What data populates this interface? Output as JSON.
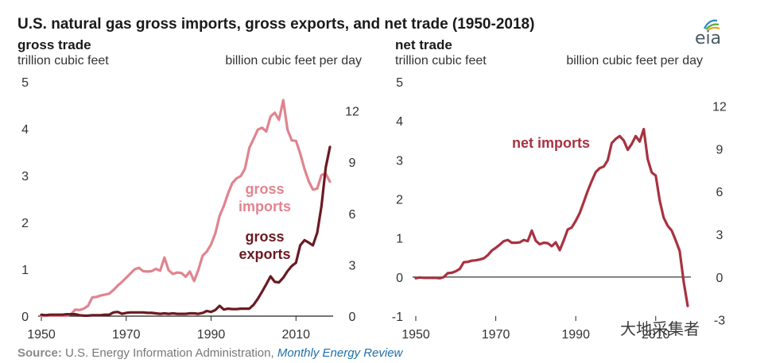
{
  "title": "U.S. natural gas gross imports, gross exports, and net trade (1950-2018)",
  "source": {
    "label": "Source:",
    "agency": "U.S. Energy Information Administration,",
    "publication": "Monthly Energy Review"
  },
  "logo": {
    "text": "eia",
    "icon": "eia-logo-icon"
  },
  "watermark": "大地采集者",
  "colors": {
    "imports": "#e0848f",
    "exports": "#6b1a22",
    "net_imports": "#a83240",
    "axis": "#222222"
  },
  "chart_data": [
    {
      "type": "line",
      "panel": "gross trade",
      "title": "gross trade",
      "ylabel_left": "trillion cubic feet",
      "ylabel_right": "billion cubic feet per day",
      "xlim": [
        1950,
        2018
      ],
      "ylim": [
        0,
        5
      ],
      "y2lim": [
        0,
        13.7
      ],
      "xticks": [
        "1950",
        "1970",
        "1990",
        "2010"
      ],
      "yticks": [
        "0",
        "1",
        "2",
        "3",
        "4",
        "5"
      ],
      "y2ticks": [
        "0",
        "3",
        "6",
        "9",
        "12"
      ],
      "grid": false,
      "x": [
        1950,
        1951,
        1952,
        1953,
        1954,
        1955,
        1956,
        1957,
        1958,
        1959,
        1960,
        1961,
        1962,
        1963,
        1964,
        1965,
        1966,
        1967,
        1968,
        1969,
        1970,
        1971,
        1972,
        1973,
        1974,
        1975,
        1976,
        1977,
        1978,
        1979,
        1980,
        1981,
        1982,
        1983,
        1984,
        1985,
        1986,
        1987,
        1988,
        1989,
        1990,
        1991,
        1992,
        1993,
        1994,
        1995,
        1996,
        1997,
        1998,
        1999,
        2000,
        2001,
        2002,
        2003,
        2004,
        2005,
        2006,
        2007,
        2008,
        2009,
        2010,
        2011,
        2012,
        2013,
        2014,
        2015,
        2016,
        2017,
        2018
      ],
      "series": [
        {
          "name": "gross imports",
          "label": [
            "gross",
            "imports"
          ],
          "values": [
            0.0,
            0.01,
            0.01,
            0.01,
            0.01,
            0.01,
            0.01,
            0.04,
            0.14,
            0.13,
            0.16,
            0.22,
            0.4,
            0.41,
            0.44,
            0.46,
            0.48,
            0.56,
            0.65,
            0.73,
            0.82,
            0.91,
            1.0,
            1.03,
            0.96,
            0.95,
            0.96,
            1.01,
            0.97,
            1.25,
            0.98,
            0.9,
            0.93,
            0.92,
            0.84,
            0.95,
            0.75,
            0.99,
            1.29,
            1.38,
            1.53,
            1.77,
            2.14,
            2.35,
            2.62,
            2.84,
            2.94,
            2.99,
            3.15,
            3.59,
            3.78,
            3.98,
            4.02,
            3.94,
            4.26,
            4.34,
            4.19,
            4.61,
            3.98,
            3.75,
            3.74,
            3.47,
            3.14,
            2.88,
            2.7,
            2.72,
            3.01,
            3.04,
            2.87
          ]
        },
        {
          "name": "gross exports",
          "label": [
            "gross",
            "exports"
          ],
          "values": [
            0.03,
            0.02,
            0.03,
            0.03,
            0.03,
            0.03,
            0.04,
            0.04,
            0.04,
            0.02,
            0.01,
            0.01,
            0.02,
            0.02,
            0.02,
            0.03,
            0.03,
            0.08,
            0.09,
            0.05,
            0.07,
            0.08,
            0.08,
            0.08,
            0.08,
            0.07,
            0.07,
            0.06,
            0.05,
            0.06,
            0.05,
            0.06,
            0.05,
            0.05,
            0.05,
            0.06,
            0.06,
            0.05,
            0.07,
            0.11,
            0.09,
            0.13,
            0.22,
            0.14,
            0.16,
            0.15,
            0.15,
            0.16,
            0.16,
            0.16,
            0.24,
            0.37,
            0.52,
            0.68,
            0.85,
            0.73,
            0.72,
            0.82,
            0.96,
            1.07,
            1.14,
            1.51,
            1.62,
            1.57,
            1.51,
            1.78,
            2.34,
            3.17,
            3.61
          ]
        }
      ]
    },
    {
      "type": "line",
      "panel": "net trade",
      "title": "net trade",
      "ylabel_left": "trillion cubic feet",
      "ylabel_right": "billion cubic feet per day",
      "xlim": [
        1950,
        2018
      ],
      "ylim": [
        -1,
        5
      ],
      "y2lim": [
        -2.74,
        13.7
      ],
      "xticks": [
        "1950",
        "1970",
        "1990",
        "2010"
      ],
      "yticks": [
        "-1",
        "0",
        "1",
        "2",
        "3",
        "4",
        "5"
      ],
      "y2ticks": [
        "-3",
        "0",
        "3",
        "6",
        "9",
        "12"
      ],
      "grid": false,
      "x": [
        1950,
        1951,
        1952,
        1953,
        1954,
        1955,
        1956,
        1957,
        1958,
        1959,
        1960,
        1961,
        1962,
        1963,
        1964,
        1965,
        1966,
        1967,
        1968,
        1969,
        1970,
        1971,
        1972,
        1973,
        1974,
        1975,
        1976,
        1977,
        1978,
        1979,
        1980,
        1981,
        1982,
        1983,
        1984,
        1985,
        1986,
        1987,
        1988,
        1989,
        1990,
        1991,
        1992,
        1993,
        1994,
        1995,
        1996,
        1997,
        1998,
        1999,
        2000,
        2001,
        2002,
        2003,
        2004,
        2005,
        2006,
        2007,
        2008,
        2009,
        2010,
        2011,
        2012,
        2013,
        2014,
        2015,
        2016,
        2017,
        2018
      ],
      "series": [
        {
          "name": "net imports",
          "label": [
            "net imports"
          ],
          "values": [
            -0.03,
            -0.01,
            -0.02,
            -0.02,
            -0.02,
            -0.02,
            -0.03,
            0.0,
            0.1,
            0.11,
            0.15,
            0.21,
            0.38,
            0.39,
            0.42,
            0.43,
            0.45,
            0.48,
            0.56,
            0.68,
            0.75,
            0.83,
            0.92,
            0.95,
            0.88,
            0.88,
            0.89,
            0.95,
            0.92,
            1.19,
            0.93,
            0.84,
            0.88,
            0.87,
            0.79,
            0.89,
            0.69,
            0.94,
            1.22,
            1.27,
            1.44,
            1.64,
            1.92,
            2.21,
            2.46,
            2.69,
            2.79,
            2.83,
            2.99,
            3.43,
            3.54,
            3.61,
            3.5,
            3.26,
            3.41,
            3.61,
            3.47,
            3.79,
            3.02,
            2.68,
            2.6,
            1.96,
            1.52,
            1.31,
            1.19,
            0.94,
            0.67,
            -0.13,
            -0.74
          ]
        }
      ]
    }
  ]
}
